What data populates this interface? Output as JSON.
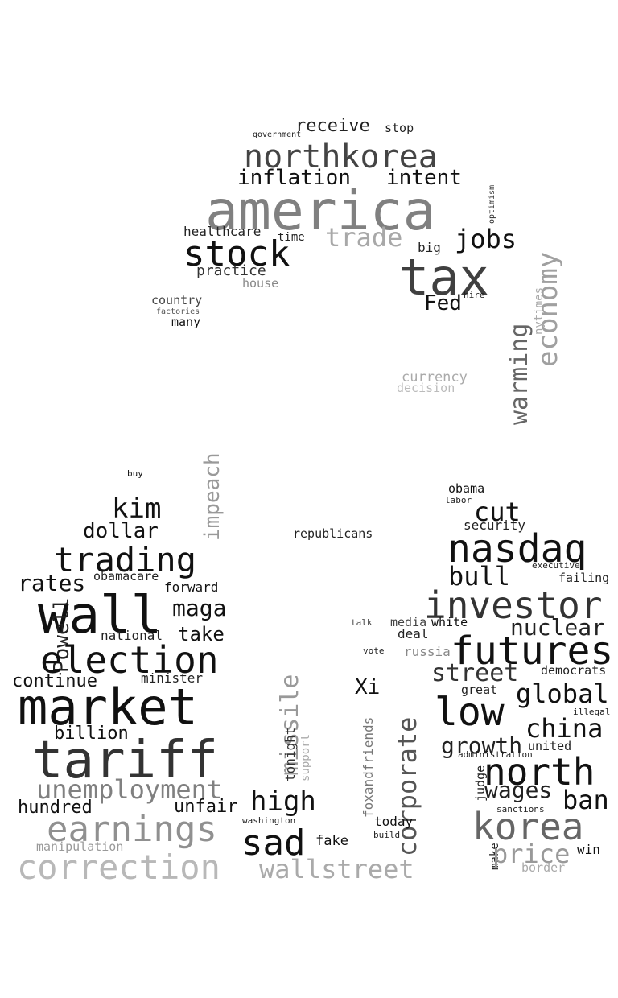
{
  "cloud": {
    "words": [
      {
        "text": "receive",
        "color": "#222222"
      },
      {
        "text": "stop",
        "color": "#222222"
      },
      {
        "text": "government",
        "color": "#222222"
      },
      {
        "text": "northkorea",
        "color": "#444444"
      },
      {
        "text": "inflation",
        "color": "#111111"
      },
      {
        "text": "intent",
        "color": "#111111"
      },
      {
        "text": "america",
        "color": "#808080"
      },
      {
        "text": "optimism",
        "color": "#333333"
      },
      {
        "text": "healthcare",
        "color": "#222222"
      },
      {
        "text": "time",
        "color": "#222222"
      },
      {
        "text": "trade",
        "color": "#a8a8a8"
      },
      {
        "text": "jobs",
        "color": "#111111"
      },
      {
        "text": "stock",
        "color": "#111111"
      },
      {
        "text": "big",
        "color": "#222222"
      },
      {
        "text": "tax",
        "color": "#404040"
      },
      {
        "text": "practice",
        "color": "#333333"
      },
      {
        "text": "house",
        "color": "#888888"
      },
      {
        "text": "economy",
        "color": "#a0a0a0"
      },
      {
        "text": "hire",
        "color": "#222222"
      },
      {
        "text": "Fed",
        "color": "#111111"
      },
      {
        "text": "nytimes",
        "color": "#aaaaaa"
      },
      {
        "text": "country",
        "color": "#444444"
      },
      {
        "text": "factories",
        "color": "#555555"
      },
      {
        "text": "many",
        "color": "#111111"
      },
      {
        "text": "warming",
        "color": "#666666"
      },
      {
        "text": "currency",
        "color": "#aaaaaa"
      },
      {
        "text": "decision",
        "color": "#bbbbbb"
      },
      {
        "text": "buy",
        "color": "#111111"
      },
      {
        "text": "impeach",
        "color": "#999999"
      },
      {
        "text": "obama",
        "color": "#111111"
      },
      {
        "text": "labor",
        "color": "#222222"
      },
      {
        "text": "kim",
        "color": "#111111"
      },
      {
        "text": "cut",
        "color": "#111111"
      },
      {
        "text": "security",
        "color": "#222222"
      },
      {
        "text": "dollar",
        "color": "#111111"
      },
      {
        "text": "republicans",
        "color": "#222222"
      },
      {
        "text": "nasdaq",
        "color": "#111111"
      },
      {
        "text": "trading",
        "color": "#111111"
      },
      {
        "text": "bull",
        "color": "#111111"
      },
      {
        "text": "executive",
        "color": "#222222"
      },
      {
        "text": "rates",
        "color": "#111111"
      },
      {
        "text": "obamacare",
        "color": "#222222"
      },
      {
        "text": "failing",
        "color": "#222222"
      },
      {
        "text": "forward",
        "color": "#111111"
      },
      {
        "text": "wall",
        "color": "#111111"
      },
      {
        "text": "investor",
        "color": "#333333"
      },
      {
        "text": "maga",
        "color": "#111111"
      },
      {
        "text": "Powell",
        "color": "#222222"
      },
      {
        "text": "talk",
        "color": "#444444"
      },
      {
        "text": "media",
        "color": "#444444"
      },
      {
        "text": "white",
        "color": "#111111"
      },
      {
        "text": "nuclear",
        "color": "#222222"
      },
      {
        "text": "national",
        "color": "#222222"
      },
      {
        "text": "take",
        "color": "#111111"
      },
      {
        "text": "deal",
        "color": "#222222"
      },
      {
        "text": "futures",
        "color": "#111111"
      },
      {
        "text": "vote",
        "color": "#222222"
      },
      {
        "text": "russia",
        "color": "#888888"
      },
      {
        "text": "election",
        "color": "#111111"
      },
      {
        "text": "street",
        "color": "#333333"
      },
      {
        "text": "democrats",
        "color": "#222222"
      },
      {
        "text": "continue",
        "color": "#111111"
      },
      {
        "text": "minister",
        "color": "#222222"
      },
      {
        "text": "missile",
        "color": "#999999"
      },
      {
        "text": "Xi",
        "color": "#111111"
      },
      {
        "text": "great",
        "color": "#222222"
      },
      {
        "text": "global",
        "color": "#111111"
      },
      {
        "text": "market",
        "color": "#111111"
      },
      {
        "text": "low",
        "color": "#111111"
      },
      {
        "text": "illegal",
        "color": "#222222"
      },
      {
        "text": "foxandfriends",
        "color": "#777777"
      },
      {
        "text": "china",
        "color": "#111111"
      },
      {
        "text": "billion",
        "color": "#111111"
      },
      {
        "text": "corporate",
        "color": "#555555"
      },
      {
        "text": "tonight",
        "color": "#333333"
      },
      {
        "text": "support",
        "color": "#aaaaaa"
      },
      {
        "text": "growth",
        "color": "#222222"
      },
      {
        "text": "united",
        "color": "#222222"
      },
      {
        "text": "tariff",
        "color": "#333333"
      },
      {
        "text": "administration",
        "color": "#222222"
      },
      {
        "text": "judge",
        "color": "#222222"
      },
      {
        "text": "north",
        "color": "#111111"
      },
      {
        "text": "unemployment",
        "color": "#808080"
      },
      {
        "text": "wages",
        "color": "#222222"
      },
      {
        "text": "hundred",
        "color": "#111111"
      },
      {
        "text": "unfair",
        "color": "#111111"
      },
      {
        "text": "high",
        "color": "#111111"
      },
      {
        "text": "ban",
        "color": "#111111"
      },
      {
        "text": "sanctions",
        "color": "#222222"
      },
      {
        "text": "earnings",
        "color": "#909090"
      },
      {
        "text": "washington",
        "color": "#222222"
      },
      {
        "text": "today",
        "color": "#111111"
      },
      {
        "text": "korea",
        "color": "#666666"
      },
      {
        "text": "build",
        "color": "#222222"
      },
      {
        "text": "sad",
        "color": "#111111"
      },
      {
        "text": "fake",
        "color": "#111111"
      },
      {
        "text": "make",
        "color": "#222222"
      },
      {
        "text": "price",
        "color": "#999999"
      },
      {
        "text": "win",
        "color": "#111111"
      },
      {
        "text": "manipulation",
        "color": "#999999"
      },
      {
        "text": "wallstreet",
        "color": "#aaaaaa"
      },
      {
        "text": "border",
        "color": "#aaaaaa"
      },
      {
        "text": "correction",
        "color": "#b8b8b8"
      }
    ]
  }
}
